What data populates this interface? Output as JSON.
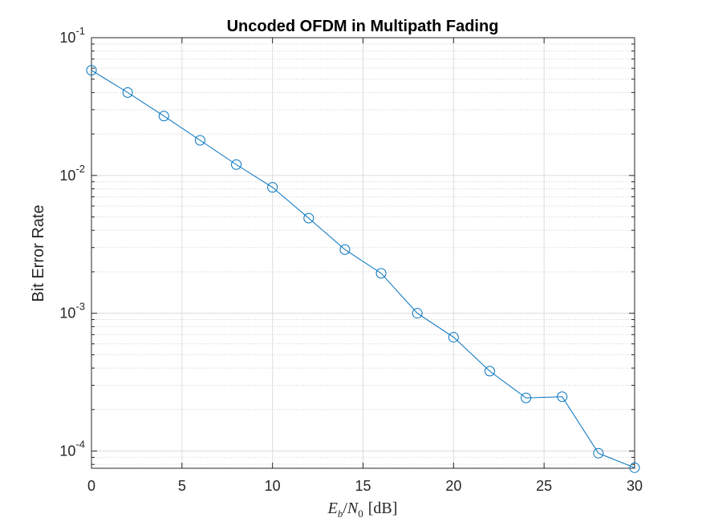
{
  "chart_data": {
    "type": "line",
    "title": "Uncoded OFDM in Multipath Fading",
    "xlabel": {
      "E": "E",
      "b": "b",
      "slash": "/",
      "N": "N",
      "zero": "0",
      "unit": "[dB]"
    },
    "ylabel": "Bit Error Rate",
    "xlim": [
      0,
      30
    ],
    "ylim": [
      7.5e-05,
      0.1
    ],
    "yscale": "log",
    "grid": true,
    "minor_grid": true,
    "x_ticks": [
      "0",
      "5",
      "10",
      "15",
      "20",
      "25",
      "30"
    ],
    "y_ticks": [
      {
        "base": "10",
        "exp": "-4"
      },
      {
        "base": "10",
        "exp": "-3"
      },
      {
        "base": "10",
        "exp": "-2"
      },
      {
        "base": "10",
        "exp": "-1"
      }
    ],
    "marker": "circle",
    "line_color": "#0072BD",
    "x": [
      0,
      2,
      4,
      6,
      8,
      10,
      12,
      14,
      16,
      18,
      20,
      22,
      24,
      26,
      28,
      30
    ],
    "y": [
      0.058,
      0.04,
      0.027,
      0.018,
      0.012,
      0.0082,
      0.0049,
      0.0029,
      0.00195,
      0.001,
      0.00067,
      0.00038,
      0.000243,
      0.000248,
      9.65e-05,
      7.57e-05
    ]
  }
}
